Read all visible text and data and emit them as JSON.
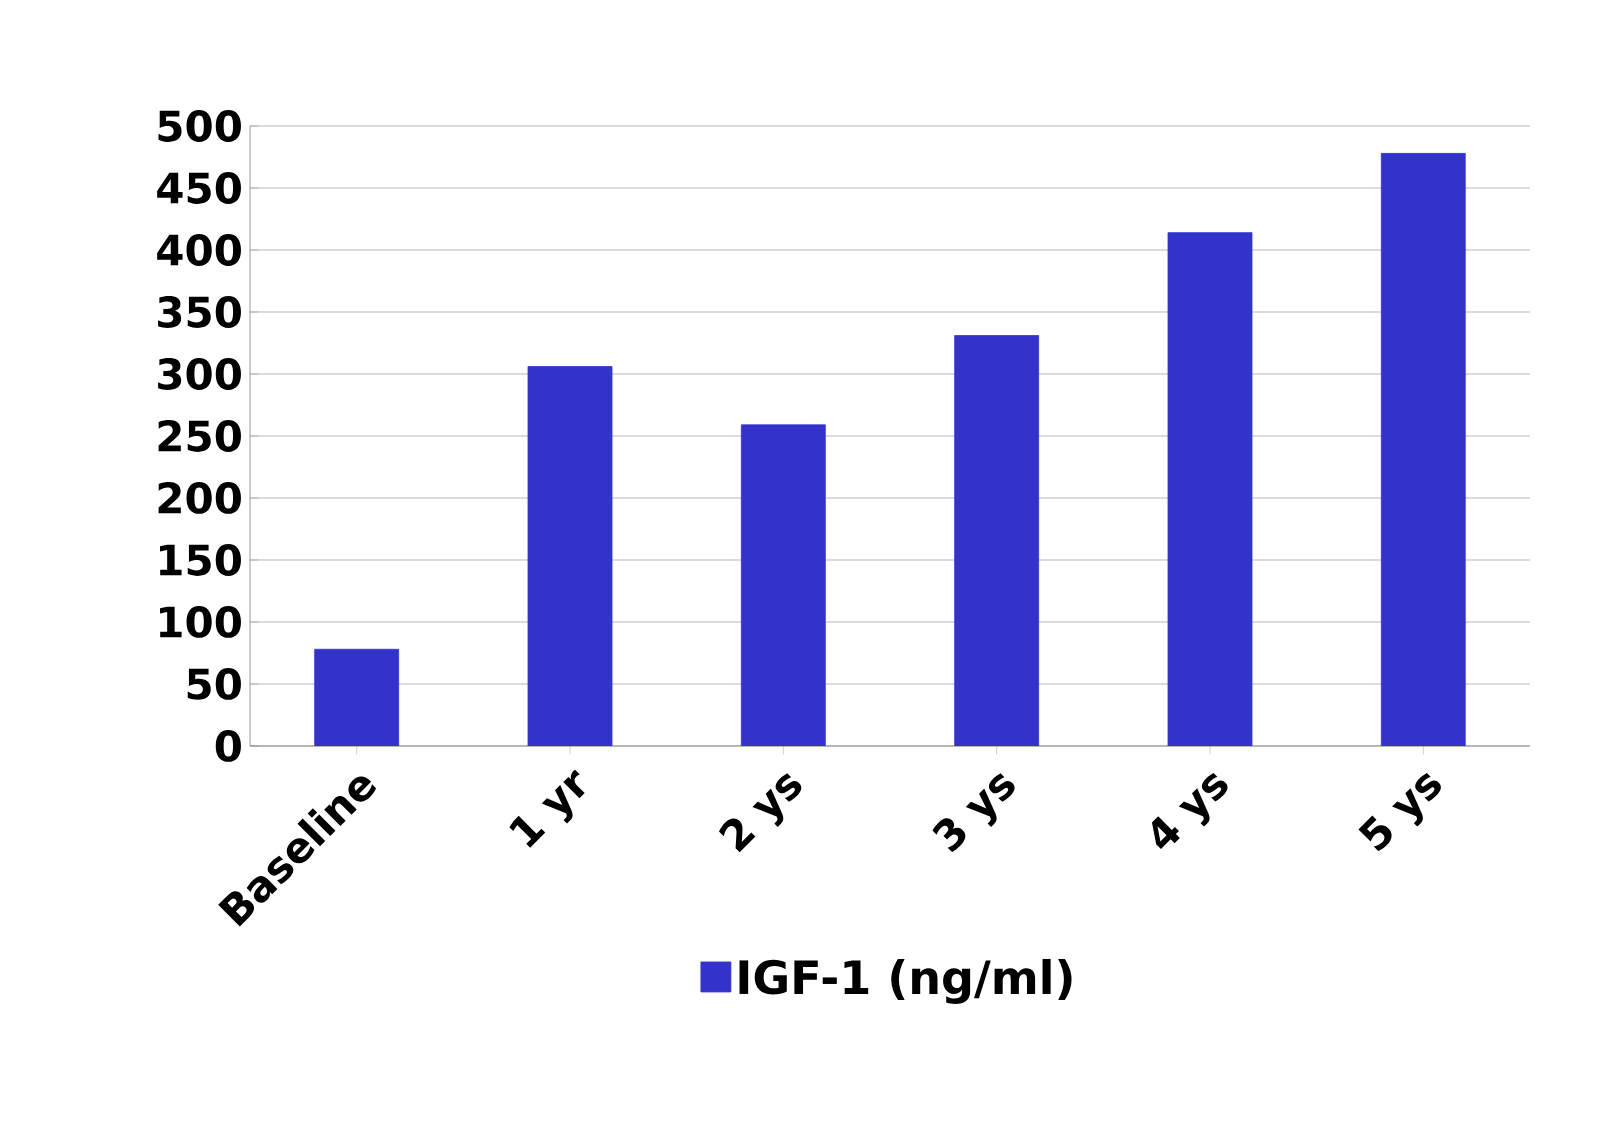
{
  "chart_data": {
    "type": "bar",
    "categories": [
      "Baseline",
      "1 yr",
      "2 ys",
      "3 ys",
      "4 ys",
      "5 ys"
    ],
    "series": [
      {
        "name": "IGF-1 (ng/ml)",
        "color": "#3333cc",
        "values": [
          78,
          306,
          259,
          331,
          414,
          478
        ]
      }
    ],
    "ylim": [
      0,
      500
    ],
    "yticks": [
      0,
      50,
      100,
      150,
      200,
      250,
      300,
      350,
      400,
      450,
      500
    ],
    "grid": "y",
    "legend": "bottom"
  }
}
